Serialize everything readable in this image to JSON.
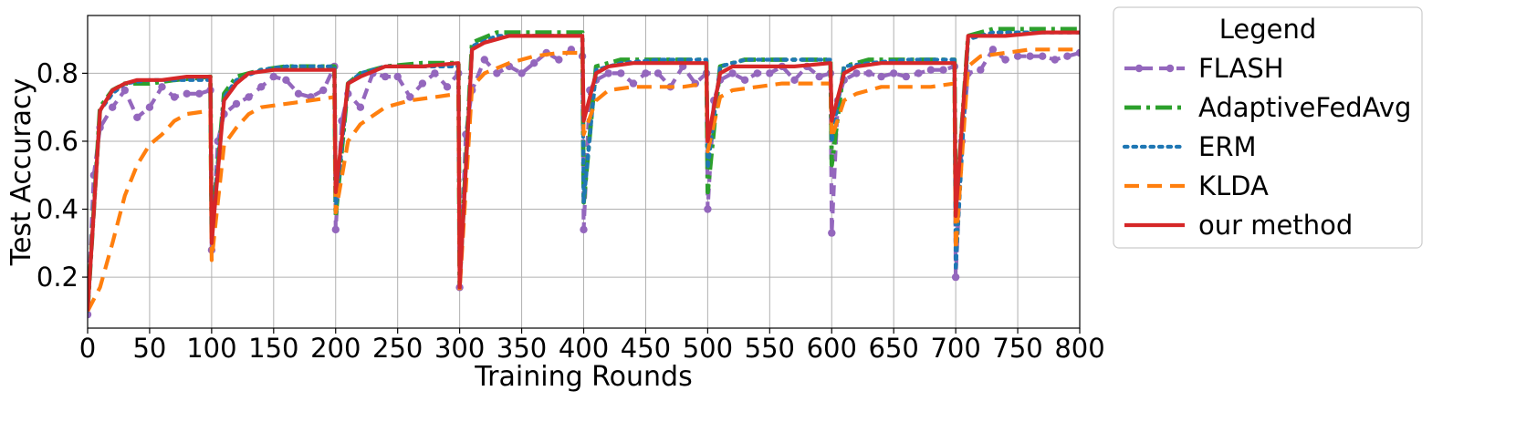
{
  "chart_data": {
    "type": "line",
    "title": "",
    "xlabel": "Training Rounds",
    "ylabel": "Test Accuracy",
    "xlim": [
      0,
      800
    ],
    "ylim": [
      0.05,
      0.97
    ],
    "x_ticks": [
      0,
      50,
      100,
      150,
      200,
      250,
      300,
      350,
      400,
      450,
      500,
      550,
      600,
      650,
      700,
      750,
      800
    ],
    "y_ticks": [
      0.2,
      0.4,
      0.6,
      0.8
    ],
    "grid": true,
    "legend": {
      "title": "Legend",
      "placement": "outside right"
    },
    "series": [
      {
        "name": "FLASH",
        "color": "#9467bd",
        "style": "dashed-markers",
        "points": [
          [
            0,
            0.09
          ],
          [
            5,
            0.5
          ],
          [
            10,
            0.64
          ],
          [
            20,
            0.7
          ],
          [
            30,
            0.75
          ],
          [
            40,
            0.67
          ],
          [
            50,
            0.7
          ],
          [
            60,
            0.76
          ],
          [
            70,
            0.73
          ],
          [
            80,
            0.74
          ],
          [
            90,
            0.74
          ],
          [
            99,
            0.75
          ],
          [
            100,
            0.28
          ],
          [
            105,
            0.6
          ],
          [
            110,
            0.68
          ],
          [
            120,
            0.71
          ],
          [
            130,
            0.73
          ],
          [
            140,
            0.76
          ],
          [
            150,
            0.79
          ],
          [
            160,
            0.78
          ],
          [
            170,
            0.74
          ],
          [
            180,
            0.73
          ],
          [
            190,
            0.75
          ],
          [
            199,
            0.82
          ],
          [
            200,
            0.34
          ],
          [
            205,
            0.66
          ],
          [
            210,
            0.74
          ],
          [
            220,
            0.7
          ],
          [
            230,
            0.8
          ],
          [
            240,
            0.79
          ],
          [
            250,
            0.79
          ],
          [
            260,
            0.73
          ],
          [
            270,
            0.77
          ],
          [
            280,
            0.8
          ],
          [
            290,
            0.76
          ],
          [
            299,
            0.8
          ],
          [
            300,
            0.17
          ],
          [
            305,
            0.62
          ],
          [
            310,
            0.75
          ],
          [
            320,
            0.84
          ],
          [
            330,
            0.8
          ],
          [
            340,
            0.82
          ],
          [
            350,
            0.8
          ],
          [
            360,
            0.83
          ],
          [
            370,
            0.86
          ],
          [
            380,
            0.84
          ],
          [
            390,
            0.87
          ],
          [
            399,
            0.85
          ],
          [
            400,
            0.34
          ],
          [
            405,
            0.75
          ],
          [
            410,
            0.78
          ],
          [
            420,
            0.8
          ],
          [
            430,
            0.8
          ],
          [
            440,
            0.77
          ],
          [
            450,
            0.8
          ],
          [
            460,
            0.8
          ],
          [
            470,
            0.76
          ],
          [
            480,
            0.82
          ],
          [
            490,
            0.77
          ],
          [
            499,
            0.8
          ],
          [
            500,
            0.4
          ],
          [
            505,
            0.72
          ],
          [
            510,
            0.78
          ],
          [
            520,
            0.8
          ],
          [
            530,
            0.78
          ],
          [
            540,
            0.8
          ],
          [
            550,
            0.8
          ],
          [
            560,
            0.82
          ],
          [
            570,
            0.78
          ],
          [
            580,
            0.82
          ],
          [
            590,
            0.79
          ],
          [
            599,
            0.8
          ],
          [
            600,
            0.33
          ],
          [
            605,
            0.72
          ],
          [
            610,
            0.78
          ],
          [
            620,
            0.8
          ],
          [
            630,
            0.8
          ],
          [
            640,
            0.79
          ],
          [
            650,
            0.8
          ],
          [
            660,
            0.79
          ],
          [
            670,
            0.8
          ],
          [
            680,
            0.81
          ],
          [
            690,
            0.81
          ],
          [
            699,
            0.82
          ],
          [
            700,
            0.2
          ],
          [
            705,
            0.6
          ],
          [
            710,
            0.8
          ],
          [
            720,
            0.81
          ],
          [
            730,
            0.87
          ],
          [
            740,
            0.84
          ],
          [
            750,
            0.85
          ],
          [
            760,
            0.85
          ],
          [
            770,
            0.85
          ],
          [
            780,
            0.84
          ],
          [
            790,
            0.85
          ],
          [
            800,
            0.86
          ]
        ]
      },
      {
        "name": "AdaptiveFedAvg",
        "color": "#2ca02c",
        "style": "dashdot",
        "points": [
          [
            0,
            0.1
          ],
          [
            10,
            0.7
          ],
          [
            20,
            0.75
          ],
          [
            30,
            0.77
          ],
          [
            50,
            0.77
          ],
          [
            70,
            0.78
          ],
          [
            99,
            0.79
          ],
          [
            100,
            0.32
          ],
          [
            110,
            0.74
          ],
          [
            120,
            0.79
          ],
          [
            140,
            0.81
          ],
          [
            160,
            0.82
          ],
          [
            199,
            0.82
          ],
          [
            200,
            0.38
          ],
          [
            210,
            0.77
          ],
          [
            220,
            0.8
          ],
          [
            240,
            0.82
          ],
          [
            270,
            0.83
          ],
          [
            299,
            0.83
          ],
          [
            300,
            0.18
          ],
          [
            310,
            0.89
          ],
          [
            330,
            0.92
          ],
          [
            360,
            0.92
          ],
          [
            399,
            0.92
          ],
          [
            400,
            0.42
          ],
          [
            410,
            0.82
          ],
          [
            430,
            0.84
          ],
          [
            460,
            0.84
          ],
          [
            499,
            0.84
          ],
          [
            500,
            0.45
          ],
          [
            510,
            0.82
          ],
          [
            530,
            0.84
          ],
          [
            560,
            0.84
          ],
          [
            599,
            0.84
          ],
          [
            600,
            0.53
          ],
          [
            610,
            0.82
          ],
          [
            630,
            0.84
          ],
          [
            660,
            0.84
          ],
          [
            699,
            0.84
          ],
          [
            700,
            0.38
          ],
          [
            710,
            0.91
          ],
          [
            730,
            0.93
          ],
          [
            760,
            0.93
          ],
          [
            800,
            0.93
          ]
        ]
      },
      {
        "name": "ERM",
        "color": "#1f77b4",
        "style": "dotted",
        "points": [
          [
            0,
            0.1
          ],
          [
            10,
            0.69
          ],
          [
            20,
            0.74
          ],
          [
            30,
            0.77
          ],
          [
            50,
            0.78
          ],
          [
            70,
            0.78
          ],
          [
            99,
            0.78
          ],
          [
            100,
            0.33
          ],
          [
            110,
            0.73
          ],
          [
            120,
            0.78
          ],
          [
            140,
            0.81
          ],
          [
            160,
            0.82
          ],
          [
            199,
            0.82
          ],
          [
            200,
            0.4
          ],
          [
            210,
            0.77
          ],
          [
            220,
            0.8
          ],
          [
            240,
            0.82
          ],
          [
            270,
            0.82
          ],
          [
            299,
            0.82
          ],
          [
            300,
            0.18
          ],
          [
            310,
            0.88
          ],
          [
            330,
            0.91
          ],
          [
            360,
            0.91
          ],
          [
            399,
            0.91
          ],
          [
            400,
            0.42
          ],
          [
            410,
            0.81
          ],
          [
            430,
            0.83
          ],
          [
            460,
            0.84
          ],
          [
            499,
            0.84
          ],
          [
            500,
            0.52
          ],
          [
            510,
            0.82
          ],
          [
            530,
            0.84
          ],
          [
            560,
            0.84
          ],
          [
            599,
            0.84
          ],
          [
            600,
            0.6
          ],
          [
            610,
            0.82
          ],
          [
            630,
            0.83
          ],
          [
            660,
            0.84
          ],
          [
            699,
            0.84
          ],
          [
            700,
            0.22
          ],
          [
            710,
            0.9
          ],
          [
            730,
            0.92
          ],
          [
            760,
            0.92
          ],
          [
            800,
            0.92
          ]
        ]
      },
      {
        "name": "KLDA",
        "color": "#ff7f0e",
        "style": "dashed",
        "points": [
          [
            0,
            0.1
          ],
          [
            10,
            0.17
          ],
          [
            20,
            0.3
          ],
          [
            30,
            0.44
          ],
          [
            40,
            0.53
          ],
          [
            50,
            0.59
          ],
          [
            60,
            0.62
          ],
          [
            70,
            0.66
          ],
          [
            80,
            0.68
          ],
          [
            99,
            0.69
          ],
          [
            100,
            0.25
          ],
          [
            110,
            0.59
          ],
          [
            120,
            0.64
          ],
          [
            130,
            0.68
          ],
          [
            140,
            0.7
          ],
          [
            160,
            0.71
          ],
          [
            180,
            0.72
          ],
          [
            199,
            0.73
          ],
          [
            200,
            0.39
          ],
          [
            210,
            0.6
          ],
          [
            220,
            0.65
          ],
          [
            240,
            0.7
          ],
          [
            260,
            0.72
          ],
          [
            280,
            0.73
          ],
          [
            299,
            0.74
          ],
          [
            300,
            0.16
          ],
          [
            310,
            0.76
          ],
          [
            320,
            0.8
          ],
          [
            340,
            0.83
          ],
          [
            360,
            0.85
          ],
          [
            380,
            0.86
          ],
          [
            399,
            0.86
          ],
          [
            400,
            0.62
          ],
          [
            410,
            0.72
          ],
          [
            420,
            0.75
          ],
          [
            440,
            0.76
          ],
          [
            460,
            0.76
          ],
          [
            480,
            0.76
          ],
          [
            499,
            0.77
          ],
          [
            500,
            0.57
          ],
          [
            510,
            0.73
          ],
          [
            520,
            0.75
          ],
          [
            540,
            0.76
          ],
          [
            560,
            0.77
          ],
          [
            580,
            0.77
          ],
          [
            599,
            0.77
          ],
          [
            600,
            0.61
          ],
          [
            610,
            0.72
          ],
          [
            620,
            0.74
          ],
          [
            640,
            0.76
          ],
          [
            660,
            0.76
          ],
          [
            680,
            0.76
          ],
          [
            699,
            0.77
          ],
          [
            700,
            0.28
          ],
          [
            710,
            0.82
          ],
          [
            720,
            0.85
          ],
          [
            740,
            0.86
          ],
          [
            760,
            0.87
          ],
          [
            780,
            0.87
          ],
          [
            800,
            0.87
          ]
        ]
      },
      {
        "name": "our method",
        "color": "#d62728",
        "style": "solid",
        "points": [
          [
            0,
            0.1
          ],
          [
            10,
            0.69
          ],
          [
            20,
            0.75
          ],
          [
            30,
            0.77
          ],
          [
            40,
            0.78
          ],
          [
            60,
            0.78
          ],
          [
            80,
            0.79
          ],
          [
            99,
            0.79
          ],
          [
            100,
            0.3
          ],
          [
            110,
            0.72
          ],
          [
            120,
            0.77
          ],
          [
            130,
            0.8
          ],
          [
            150,
            0.81
          ],
          [
            170,
            0.81
          ],
          [
            199,
            0.81
          ],
          [
            200,
            0.45
          ],
          [
            210,
            0.77
          ],
          [
            220,
            0.79
          ],
          [
            240,
            0.82
          ],
          [
            270,
            0.82
          ],
          [
            299,
            0.83
          ],
          [
            300,
            0.17
          ],
          [
            310,
            0.87
          ],
          [
            320,
            0.89
          ],
          [
            340,
            0.91
          ],
          [
            360,
            0.91
          ],
          [
            399,
            0.91
          ],
          [
            400,
            0.66
          ],
          [
            410,
            0.8
          ],
          [
            420,
            0.82
          ],
          [
            440,
            0.83
          ],
          [
            470,
            0.83
          ],
          [
            499,
            0.83
          ],
          [
            500,
            0.6
          ],
          [
            510,
            0.8
          ],
          [
            520,
            0.82
          ],
          [
            540,
            0.82
          ],
          [
            570,
            0.82
          ],
          [
            599,
            0.83
          ],
          [
            600,
            0.66
          ],
          [
            610,
            0.8
          ],
          [
            620,
            0.82
          ],
          [
            640,
            0.83
          ],
          [
            670,
            0.83
          ],
          [
            699,
            0.83
          ],
          [
            700,
            0.38
          ],
          [
            710,
            0.91
          ],
          [
            720,
            0.91
          ],
          [
            740,
            0.91
          ],
          [
            770,
            0.92
          ],
          [
            800,
            0.92
          ]
        ]
      }
    ]
  }
}
